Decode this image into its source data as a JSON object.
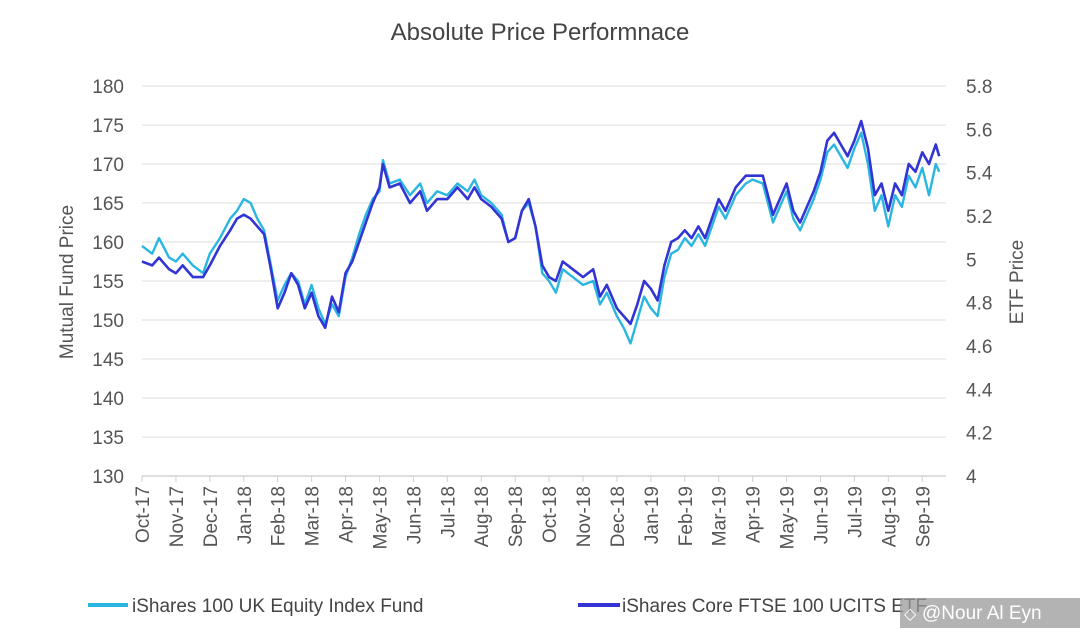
{
  "chart_data": {
    "type": "line",
    "title": "Absolute Price Performnace",
    "ylabel": "Mutual Fund Price",
    "y2label": "ETF Price",
    "ylim": [
      130,
      180
    ],
    "y2lim": [
      4,
      5.8
    ],
    "yticks": [
      130,
      135,
      140,
      145,
      150,
      155,
      160,
      165,
      170,
      175,
      180
    ],
    "y2ticks": [
      "4",
      "4.2",
      "4.4",
      "4.6",
      "4.8",
      "5",
      "5.2",
      "5.4",
      "5.6",
      "5.8"
    ],
    "xticks": [
      "Oct-17",
      "Nov-17",
      "Dec-17",
      "Jan-18",
      "Feb-18",
      "Mar-18",
      "Apr-18",
      "May-18",
      "Jun-18",
      "Jul-18",
      "Aug-18",
      "Sep-18",
      "Oct-18",
      "Nov-18",
      "Dec-18",
      "Jan-19",
      "Feb-19",
      "Mar-19",
      "Apr-19",
      "May-19",
      "Jun-19",
      "Jul-19",
      "Aug-19",
      "Sep-19"
    ],
    "x_unit": "month index (0 = Oct-17)",
    "grid": "horizontal",
    "legend_position": "bottom",
    "series": [
      {
        "name": "iShares 100 UK Equity Index Fund",
        "axis": "left",
        "color": "#2ab6e0",
        "points": [
          [
            0.0,
            159.5
          ],
          [
            0.3,
            158.5
          ],
          [
            0.5,
            160.5
          ],
          [
            0.8,
            158.0
          ],
          [
            1.0,
            157.5
          ],
          [
            1.2,
            158.5
          ],
          [
            1.5,
            157.0
          ],
          [
            1.8,
            156.0
          ],
          [
            2.0,
            158.5
          ],
          [
            2.3,
            160.5
          ],
          [
            2.6,
            163.0
          ],
          [
            2.8,
            164.0
          ],
          [
            3.0,
            165.5
          ],
          [
            3.2,
            165.0
          ],
          [
            3.4,
            163.0
          ],
          [
            3.6,
            161.5
          ],
          [
            3.8,
            157.0
          ],
          [
            4.0,
            152.5
          ],
          [
            4.2,
            154.5
          ],
          [
            4.4,
            156.0
          ],
          [
            4.6,
            155.0
          ],
          [
            4.8,
            152.0
          ],
          [
            5.0,
            154.5
          ],
          [
            5.2,
            151.5
          ],
          [
            5.4,
            149.5
          ],
          [
            5.6,
            152.0
          ],
          [
            5.8,
            150.5
          ],
          [
            6.0,
            155.5
          ],
          [
            6.2,
            158.0
          ],
          [
            6.4,
            161.0
          ],
          [
            6.6,
            163.5
          ],
          [
            6.8,
            165.5
          ],
          [
            7.0,
            166.5
          ],
          [
            7.1,
            170.5
          ],
          [
            7.3,
            167.5
          ],
          [
            7.6,
            168.0
          ],
          [
            7.9,
            166.0
          ],
          [
            8.2,
            167.5
          ],
          [
            8.4,
            165.0
          ],
          [
            8.7,
            166.5
          ],
          [
            9.0,
            166.0
          ],
          [
            9.3,
            167.5
          ],
          [
            9.6,
            166.5
          ],
          [
            9.8,
            168.0
          ],
          [
            10.0,
            166.0
          ],
          [
            10.3,
            165.0
          ],
          [
            10.6,
            163.5
          ],
          [
            10.8,
            160.0
          ],
          [
            11.0,
            160.5
          ],
          [
            11.2,
            164.0
          ],
          [
            11.4,
            165.0
          ],
          [
            11.6,
            162.0
          ],
          [
            11.8,
            156.0
          ],
          [
            12.0,
            155.0
          ],
          [
            12.2,
            153.5
          ],
          [
            12.4,
            156.5
          ],
          [
            12.7,
            155.5
          ],
          [
            13.0,
            154.5
          ],
          [
            13.3,
            155.0
          ],
          [
            13.5,
            152.0
          ],
          [
            13.7,
            153.5
          ],
          [
            14.0,
            150.5
          ],
          [
            14.2,
            149.0
          ],
          [
            14.4,
            147.0
          ],
          [
            14.6,
            150.0
          ],
          [
            14.8,
            153.0
          ],
          [
            15.0,
            151.5
          ],
          [
            15.2,
            150.5
          ],
          [
            15.4,
            155.5
          ],
          [
            15.6,
            158.5
          ],
          [
            15.8,
            159.0
          ],
          [
            16.0,
            160.5
          ],
          [
            16.2,
            159.5
          ],
          [
            16.4,
            161.0
          ],
          [
            16.6,
            159.5
          ],
          [
            16.8,
            162.0
          ],
          [
            17.0,
            164.5
          ],
          [
            17.2,
            163.0
          ],
          [
            17.5,
            166.0
          ],
          [
            17.8,
            167.5
          ],
          [
            18.0,
            168.0
          ],
          [
            18.3,
            167.5
          ],
          [
            18.6,
            162.5
          ],
          [
            18.8,
            164.5
          ],
          [
            19.0,
            166.5
          ],
          [
            19.2,
            163.0
          ],
          [
            19.4,
            161.5
          ],
          [
            19.6,
            163.5
          ],
          [
            19.8,
            165.5
          ],
          [
            20.0,
            168.0
          ],
          [
            20.2,
            171.5
          ],
          [
            20.4,
            172.5
          ],
          [
            20.6,
            171.0
          ],
          [
            20.8,
            169.5
          ],
          [
            21.0,
            172.0
          ],
          [
            21.2,
            174.0
          ],
          [
            21.4,
            170.0
          ],
          [
            21.6,
            164.0
          ],
          [
            21.8,
            166.0
          ],
          [
            22.0,
            162.0
          ],
          [
            22.2,
            166.0
          ],
          [
            22.4,
            164.5
          ],
          [
            22.6,
            168.5
          ],
          [
            22.8,
            167.0
          ],
          [
            23.0,
            169.5
          ],
          [
            23.2,
            166.0
          ],
          [
            23.4,
            170.0
          ],
          [
            23.5,
            169.0
          ]
        ]
      },
      {
        "name": "iShares Core FTSE 100 UCITS ETF",
        "axis": "left",
        "color": "#3234d4",
        "points": [
          [
            0.0,
            157.5
          ],
          [
            0.3,
            157.0
          ],
          [
            0.5,
            158.0
          ],
          [
            0.8,
            156.5
          ],
          [
            1.0,
            156.0
          ],
          [
            1.2,
            157.0
          ],
          [
            1.5,
            155.5
          ],
          [
            1.8,
            155.5
          ],
          [
            2.0,
            157.0
          ],
          [
            2.3,
            159.5
          ],
          [
            2.6,
            161.5
          ],
          [
            2.8,
            163.0
          ],
          [
            3.0,
            163.5
          ],
          [
            3.2,
            163.0
          ],
          [
            3.4,
            162.0
          ],
          [
            3.6,
            161.0
          ],
          [
            3.8,
            156.5
          ],
          [
            4.0,
            151.5
          ],
          [
            4.2,
            153.5
          ],
          [
            4.4,
            156.0
          ],
          [
            4.6,
            154.5
          ],
          [
            4.8,
            151.5
          ],
          [
            5.0,
            153.5
          ],
          [
            5.2,
            150.5
          ],
          [
            5.4,
            149.0
          ],
          [
            5.6,
            153.0
          ],
          [
            5.8,
            151.0
          ],
          [
            6.0,
            156.0
          ],
          [
            6.2,
            157.5
          ],
          [
            6.4,
            160.0
          ],
          [
            6.6,
            162.5
          ],
          [
            6.8,
            165.0
          ],
          [
            7.0,
            167.0
          ],
          [
            7.1,
            170.0
          ],
          [
            7.3,
            167.0
          ],
          [
            7.6,
            167.5
          ],
          [
            7.9,
            165.0
          ],
          [
            8.2,
            166.5
          ],
          [
            8.4,
            164.0
          ],
          [
            8.7,
            165.5
          ],
          [
            9.0,
            165.5
          ],
          [
            9.3,
            167.0
          ],
          [
            9.6,
            165.5
          ],
          [
            9.8,
            167.0
          ],
          [
            10.0,
            165.5
          ],
          [
            10.3,
            164.5
          ],
          [
            10.6,
            163.0
          ],
          [
            10.8,
            160.0
          ],
          [
            11.0,
            160.5
          ],
          [
            11.2,
            164.0
          ],
          [
            11.4,
            165.5
          ],
          [
            11.6,
            162.0
          ],
          [
            11.8,
            157.0
          ],
          [
            12.0,
            155.5
          ],
          [
            12.2,
            155.0
          ],
          [
            12.4,
            157.5
          ],
          [
            12.7,
            156.5
          ],
          [
            13.0,
            155.5
          ],
          [
            13.3,
            156.5
          ],
          [
            13.5,
            153.0
          ],
          [
            13.7,
            154.5
          ],
          [
            14.0,
            151.5
          ],
          [
            14.2,
            150.5
          ],
          [
            14.4,
            149.5
          ],
          [
            14.6,
            152.0
          ],
          [
            14.8,
            155.0
          ],
          [
            15.0,
            154.0
          ],
          [
            15.2,
            152.5
          ],
          [
            15.4,
            157.0
          ],
          [
            15.6,
            160.0
          ],
          [
            15.8,
            160.5
          ],
          [
            16.0,
            161.5
          ],
          [
            16.2,
            160.5
          ],
          [
            16.4,
            162.0
          ],
          [
            16.6,
            160.5
          ],
          [
            16.8,
            163.0
          ],
          [
            17.0,
            165.5
          ],
          [
            17.2,
            164.0
          ],
          [
            17.5,
            167.0
          ],
          [
            17.8,
            168.5
          ],
          [
            18.0,
            168.5
          ],
          [
            18.3,
            168.5
          ],
          [
            18.6,
            163.5
          ],
          [
            18.8,
            165.5
          ],
          [
            19.0,
            167.5
          ],
          [
            19.2,
            164.0
          ],
          [
            19.4,
            162.5
          ],
          [
            19.6,
            164.5
          ],
          [
            19.8,
            166.5
          ],
          [
            20.0,
            169.0
          ],
          [
            20.2,
            173.0
          ],
          [
            20.4,
            174.0
          ],
          [
            20.6,
            172.5
          ],
          [
            20.8,
            171.0
          ],
          [
            21.0,
            173.0
          ],
          [
            21.2,
            175.5
          ],
          [
            21.4,
            172.0
          ],
          [
            21.6,
            166.0
          ],
          [
            21.8,
            167.5
          ],
          [
            22.0,
            164.0
          ],
          [
            22.2,
            167.5
          ],
          [
            22.4,
            166.0
          ],
          [
            22.6,
            170.0
          ],
          [
            22.8,
            169.0
          ],
          [
            23.0,
            171.5
          ],
          [
            23.2,
            170.0
          ],
          [
            23.4,
            172.5
          ],
          [
            23.5,
            171.0
          ]
        ]
      }
    ],
    "legend": [
      {
        "name": "iShares 100 UK Equity Index Fund",
        "color": "#2ab6e0"
      },
      {
        "name": "iShares Core FTSE 100 UCITS ETF",
        "color": "#3234d4"
      }
    ],
    "watermark": "@Nour Al Eyn"
  }
}
